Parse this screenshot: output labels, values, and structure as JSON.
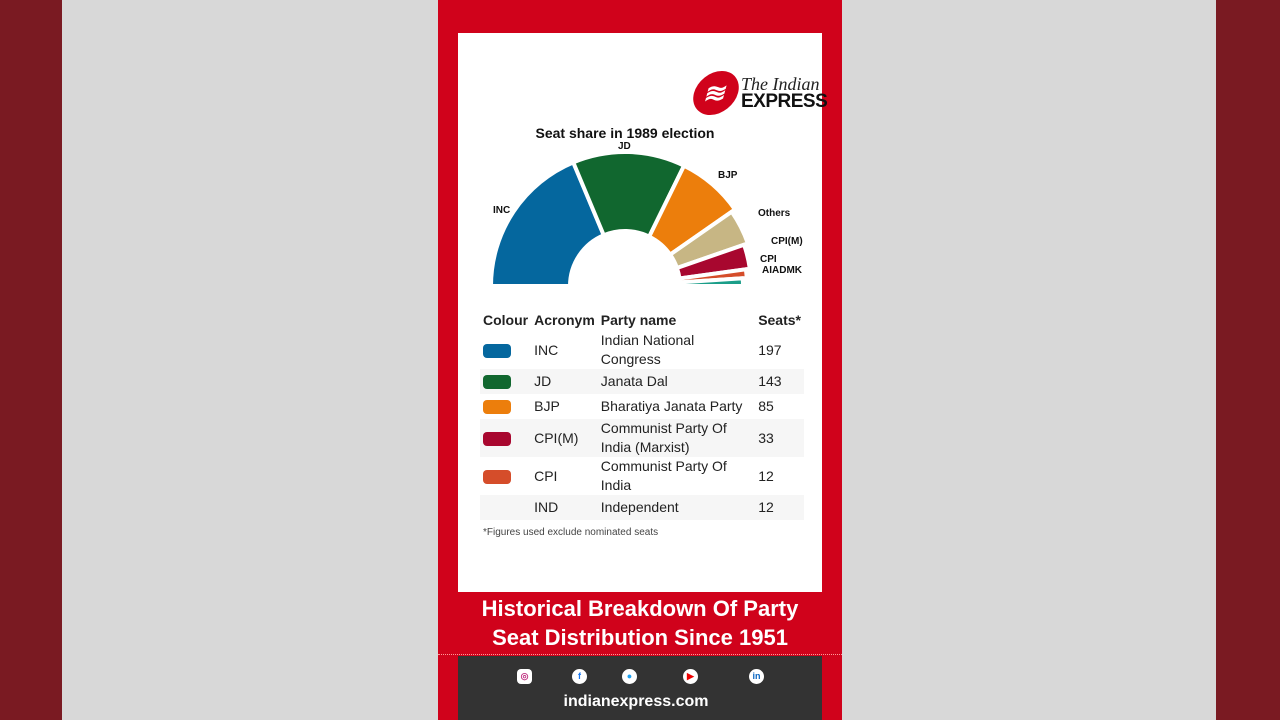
{
  "brand": {
    "logo_line1": "The Indian",
    "logo_line2": "EXPRESS",
    "colors": {
      "red": "#d0021b",
      "footer": "#333333"
    }
  },
  "chart_data": {
    "type": "parliament-semicircle",
    "title": "Seat share in 1989 election",
    "series": [
      {
        "name": "INC",
        "value": 197,
        "color": "#05679e"
      },
      {
        "name": "JD",
        "value": 143,
        "color": "#11672f"
      },
      {
        "name": "BJP",
        "value": 85,
        "color": "#ec7e0c"
      },
      {
        "name": "Others",
        "value": 46,
        "color": "#c7b684"
      },
      {
        "name": "CPI(M)",
        "value": 33,
        "color": "#a8072f"
      },
      {
        "name": "CPI",
        "value": 12,
        "color": "#d54d2a"
      },
      {
        "name": "AIADMK",
        "value": 11,
        "color": "#1b9e89"
      }
    ]
  },
  "table": {
    "headers": [
      "Colour",
      "Acronym",
      "Party name",
      "Seats*"
    ],
    "rows": [
      {
        "color": "#05679e",
        "acronym": "INC",
        "name": "Indian National Congress",
        "seats": "197"
      },
      {
        "color": "#11672f",
        "acronym": "JD",
        "name": "Janata Dal",
        "seats": "143"
      },
      {
        "color": "#ec7e0c",
        "acronym": "BJP",
        "name": "Bharatiya Janata Party",
        "seats": "85"
      },
      {
        "color": "#a8072f",
        "acronym": "CPI(M)",
        "name": "Communist Party Of India (Marxist)",
        "seats": "33"
      },
      {
        "color": "#d54d2a",
        "acronym": "CPI",
        "name": "Communist Party Of India",
        "seats": "12"
      },
      {
        "color": "",
        "acronym": "IND",
        "name": "Independent",
        "seats": "12"
      }
    ]
  },
  "note": "*Figures used exclude nominated seats",
  "banner": {
    "line1": "Historical Breakdown Of Party",
    "line2": "Seat Distribution Since 1951"
  },
  "footer": {
    "social_icons": [
      "instagram-icon",
      "facebook-icon",
      "twitter-icon",
      "youtube-icon",
      "linkedin-icon"
    ],
    "site": "indianexpress.com"
  }
}
